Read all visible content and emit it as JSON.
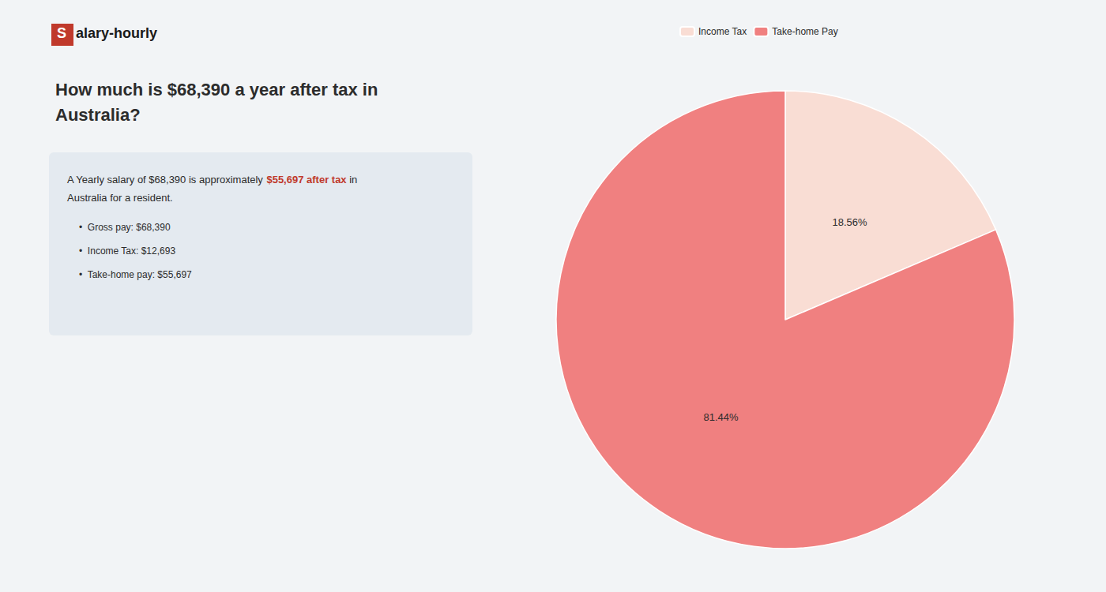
{
  "chart_data": {
    "type": "pie",
    "title": "How much is $68,390 a year after tax in\nAustralia?",
    "categories": [
      "Income Tax",
      "Take-home Pay"
    ],
    "values": [
      18.56,
      81.44
    ],
    "value_labels": [
      "18.56%",
      "81.44%"
    ],
    "colors": [
      "#f9ddd4",
      "#f08080"
    ],
    "data_labels": true,
    "legend": "top",
    "annotations": [
      "S",
      "alary-hourly",
      "A Yearly salary of $68,390 is approximately ",
      "$55,697 after tax",
      " in",
      "Australia for a resident.",
      "•  Gross pay: $68,390",
      "•  Income Tax: $12,693",
      "•  Take-home pay: $55,697"
    ]
  }
}
